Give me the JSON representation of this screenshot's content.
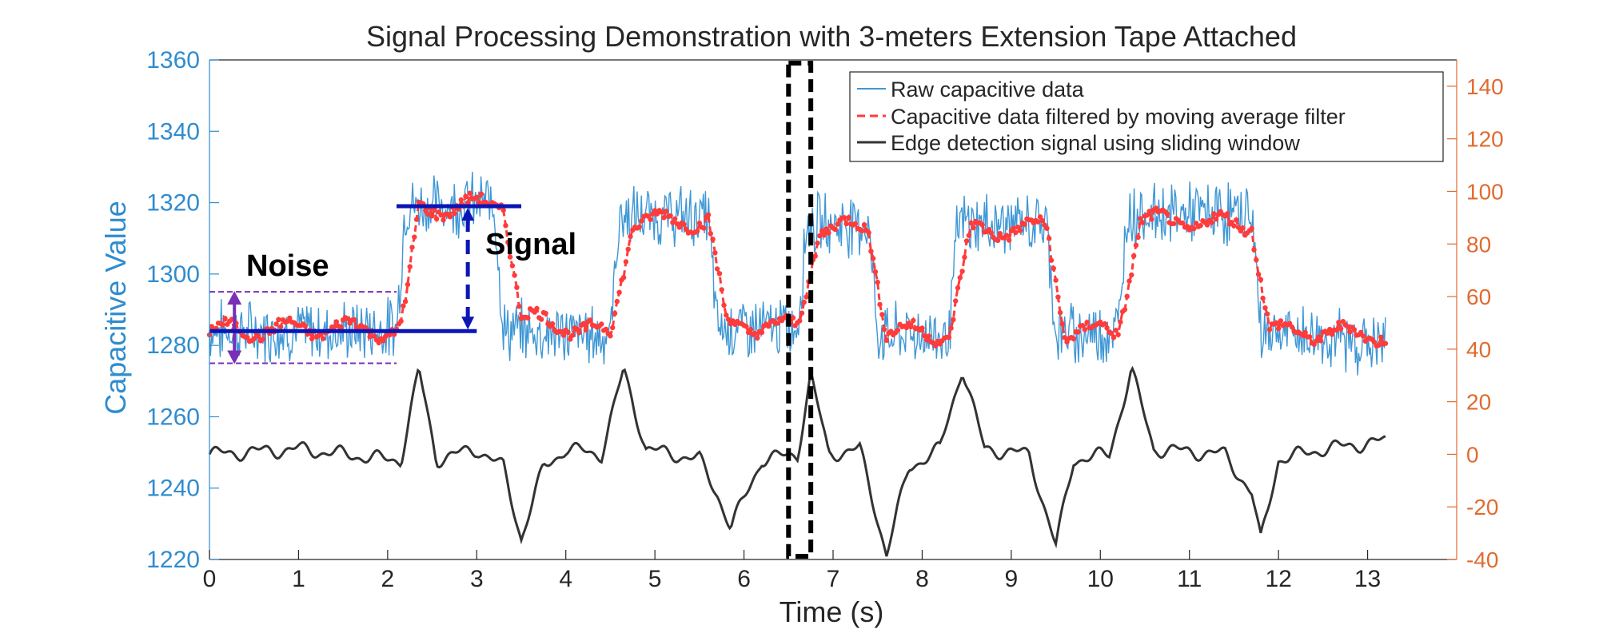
{
  "chart_data": {
    "type": "line",
    "title": "Signal Processing Demonstration with 3-meters Extension Tape Attached",
    "xlabel": "Time (s)",
    "ylabel": "Capacitive Value",
    "y2label": "",
    "xlim": [
      0,
      14
    ],
    "ylim": [
      1220,
      1360
    ],
    "y2lim": [
      -40,
      150
    ],
    "x_ticks": [
      "0",
      "1",
      "2",
      "3",
      "4",
      "5",
      "6",
      "7",
      "8",
      "9",
      "10",
      "11",
      "12",
      "13"
    ],
    "y_ticks": [
      "1220",
      "1240",
      "1260",
      "1280",
      "1300",
      "1320",
      "1340",
      "1360"
    ],
    "y2_ticks": [
      "-40",
      "-20",
      "0",
      "20",
      "40",
      "60",
      "80",
      "100",
      "120",
      "140"
    ],
    "grid": false,
    "legend_position": "top-right",
    "colors": {
      "raw": "#3f97d5",
      "filtered": "#ff3b3b",
      "edge": "#333333",
      "left_axis": "#2f8ccf",
      "right_axis": "#e06b30",
      "annotation_line": "#0b16b5",
      "noise_band": "#7a2fb8",
      "window_box": "#000000"
    },
    "series": [
      {
        "name": "Raw capacitive data",
        "axis": "left",
        "style": "solid thin",
        "x": [
          0,
          1.5,
          2.1,
          2.2,
          3.2,
          3.3,
          4.5,
          4.6,
          5.6,
          5.7,
          6.6,
          6.7,
          7.4,
          7.5,
          8.3,
          8.4,
          9.4,
          9.5,
          10.2,
          10.3,
          11.7,
          11.8,
          13.2
        ],
        "values": [
          1284,
          1284,
          1285,
          1319,
          1320,
          1284,
          1283,
          1316,
          1316,
          1285,
          1285,
          1314,
          1314,
          1283,
          1283,
          1314,
          1314,
          1283,
          1284,
          1317,
          1317,
          1284,
          1280
        ]
      },
      {
        "name": "Capacitive data filtered by moving average filter",
        "axis": "left",
        "style": "dashed with dots",
        "x": [
          0,
          1.5,
          2.1,
          2.2,
          2.35,
          3.3,
          3.5,
          4.5,
          4.75,
          5.6,
          5.8,
          6.6,
          6.85,
          7.4,
          7.6,
          8.3,
          8.55,
          9.4,
          9.6,
          10.2,
          10.45,
          11.7,
          11.9,
          13.2
        ],
        "values": [
          1284,
          1285,
          1284,
          1290,
          1318,
          1320,
          1288,
          1283,
          1315,
          1315,
          1286,
          1285,
          1313,
          1313,
          1284,
          1283,
          1312,
          1313,
          1284,
          1284,
          1315,
          1314,
          1284,
          1283
        ]
      },
      {
        "name": "Edge detection signal using sliding window",
        "axis": "right",
        "style": "solid thick",
        "x": [
          0,
          1,
          2,
          2.15,
          2.35,
          2.55,
          3,
          3.3,
          3.5,
          3.75,
          4,
          4.4,
          4.65,
          4.9,
          5.5,
          5.7,
          5.85,
          6.2,
          6.6,
          6.75,
          6.95,
          7.3,
          7.6,
          7.85,
          8.2,
          8.45,
          8.7,
          9.2,
          9.5,
          9.7,
          10.1,
          10.35,
          10.6,
          11.4,
          11.7,
          11.8,
          12.0,
          12.5,
          13.2
        ],
        "values": [
          0,
          2,
          -2,
          -2,
          32,
          -2,
          2,
          -5,
          -32,
          -5,
          2,
          0,
          32,
          2,
          -2,
          -15,
          -28,
          -2,
          0,
          30,
          0,
          2,
          -38,
          -5,
          2,
          33,
          2,
          0,
          -35,
          -2,
          0,
          32,
          2,
          0,
          -15,
          -33,
          -2,
          2,
          5
        ]
      }
    ],
    "legend": [
      "Raw capacitive data",
      "Capacitive data filtered by moving average filter",
      "Edge detection signal using sliding window"
    ],
    "annotations": {
      "noise_label": "Noise",
      "signal_label": "Signal",
      "noise_band": {
        "x": [
          0,
          2.1
        ],
        "y_low": 1275,
        "y_high": 1295,
        "level": 1284
      },
      "signal_level": {
        "x": [
          2.1,
          3.5
        ],
        "high": 1319,
        "low": 1284
      },
      "window_box": {
        "x": [
          6.5,
          6.75
        ]
      }
    }
  }
}
